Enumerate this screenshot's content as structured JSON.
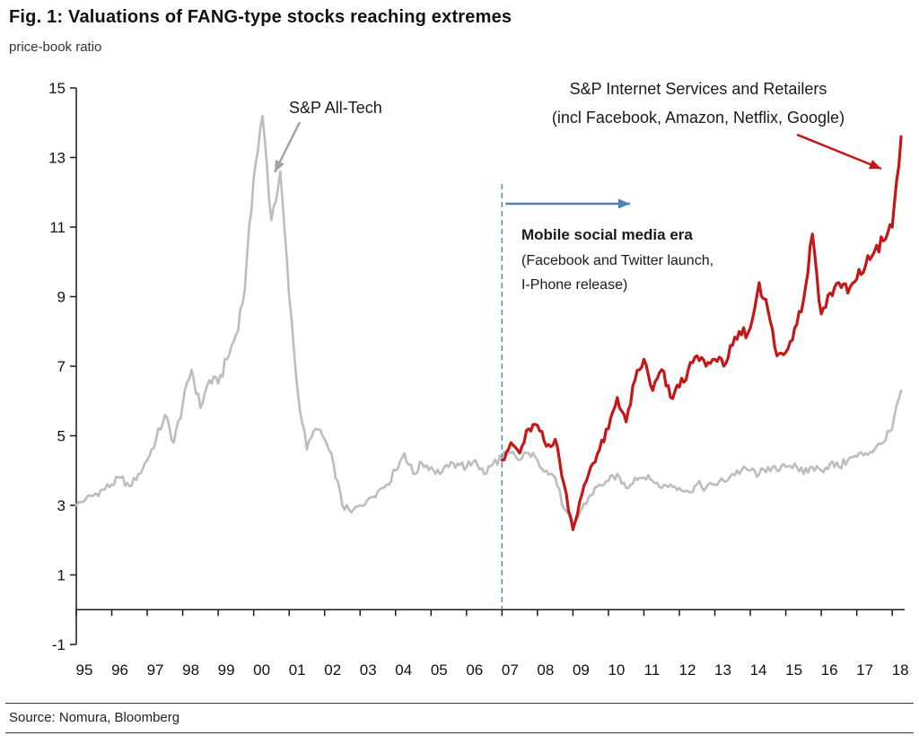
{
  "figure": {
    "title": "Fig. 1: Valuations of FANG-type stocks reaching extremes",
    "subtitle": "price-book ratio",
    "source": "Source: Nomura, Bloomberg"
  },
  "chart_data": {
    "type": "line",
    "title": "Fig. 1: Valuations of FANG-type stocks reaching extremes",
    "ylabel": "price-book ratio",
    "ylim": [
      -1,
      15
    ],
    "ytick_step": 2,
    "xlim": [
      1995,
      2018.35
    ],
    "x_start_year": 1995,
    "x_labels": [
      "95",
      "96",
      "97",
      "98",
      "99",
      "00",
      "01",
      "02",
      "03",
      "04",
      "05",
      "06",
      "07",
      "08",
      "09",
      "10",
      "11",
      "12",
      "13",
      "14",
      "15",
      "16",
      "17",
      "18"
    ],
    "grid": "off",
    "legend": "annotated-in-plot",
    "series": [
      {
        "id": "sp-all-tech",
        "name": "S&P All-Tech",
        "color": "#bdbdbd",
        "width": 2.6,
        "start": 1995.0,
        "step": 0.25,
        "values": [
          3.0,
          3.15,
          3.3,
          3.45,
          3.6,
          3.8,
          3.55,
          3.9,
          4.3,
          4.9,
          5.6,
          4.8,
          5.9,
          6.9,
          5.8,
          6.6,
          6.5,
          7.2,
          7.9,
          9.2,
          12.4,
          14.2,
          11.2,
          12.6,
          9.0,
          6.2,
          4.6,
          5.2,
          4.9,
          4.2,
          3.0,
          2.8,
          3.0,
          3.2,
          3.4,
          3.6,
          4.0,
          4.5,
          3.9,
          4.2,
          4.1,
          3.9,
          4.1,
          4.2,
          4.1,
          4.3,
          3.9,
          4.2,
          4.4,
          4.5,
          4.3,
          4.5,
          4.3,
          4.0,
          3.8,
          2.9,
          2.4,
          2.9,
          3.3,
          3.6,
          3.7,
          3.9,
          3.5,
          3.8,
          3.8,
          3.7,
          3.5,
          3.6,
          3.5,
          3.4,
          3.6,
          3.5,
          3.6,
          3.7,
          3.9,
          4.0,
          4.0,
          3.9,
          4.1,
          4.0,
          4.1,
          4.2,
          3.9,
          4.1,
          4.0,
          4.2,
          4.1,
          4.3,
          4.4,
          4.5,
          4.6,
          4.8,
          5.2,
          6.3
        ]
      },
      {
        "id": "sp-internet",
        "name": "S&P Internet Services and Retailers (incl Facebook, Amazon, Netflix, Google)",
        "color": "#c51718",
        "width": 3.2,
        "start": 2007.0,
        "step": 0.25,
        "values": [
          4.3,
          4.8,
          4.5,
          5.2,
          5.3,
          4.7,
          4.9,
          3.6,
          2.3,
          3.3,
          4.1,
          4.6,
          5.2,
          6.1,
          5.4,
          6.6,
          7.2,
          6.3,
          6.9,
          6.1,
          6.4,
          6.9,
          7.3,
          7.0,
          7.2,
          7.0,
          7.6,
          7.9,
          8.1,
          9.4,
          8.6,
          7.3,
          7.4,
          8.1,
          8.9,
          10.8,
          8.5,
          9.1,
          9.4,
          9.1,
          9.5,
          9.9,
          10.3,
          10.6,
          11.0,
          13.6
        ]
      }
    ],
    "event_line": {
      "x": 2007,
      "color": "#5b8ec4",
      "style": "dashed",
      "label": "Mobile social media era"
    },
    "annotations": {
      "all_tech": {
        "label": "S&P All-Tech",
        "arrow_color": "#a3a3a3"
      },
      "internet": {
        "line1": "S&P Internet Services and Retailers",
        "line2": "(incl Facebook, Amazon, Netflix, Google)",
        "arrow_color": "#c51718"
      },
      "mobile": {
        "title": "Mobile social media era",
        "sub1": "(Facebook and Twitter launch,",
        "sub2": "I-Phone release)",
        "arrow_color": "#4f81bd"
      }
    }
  }
}
